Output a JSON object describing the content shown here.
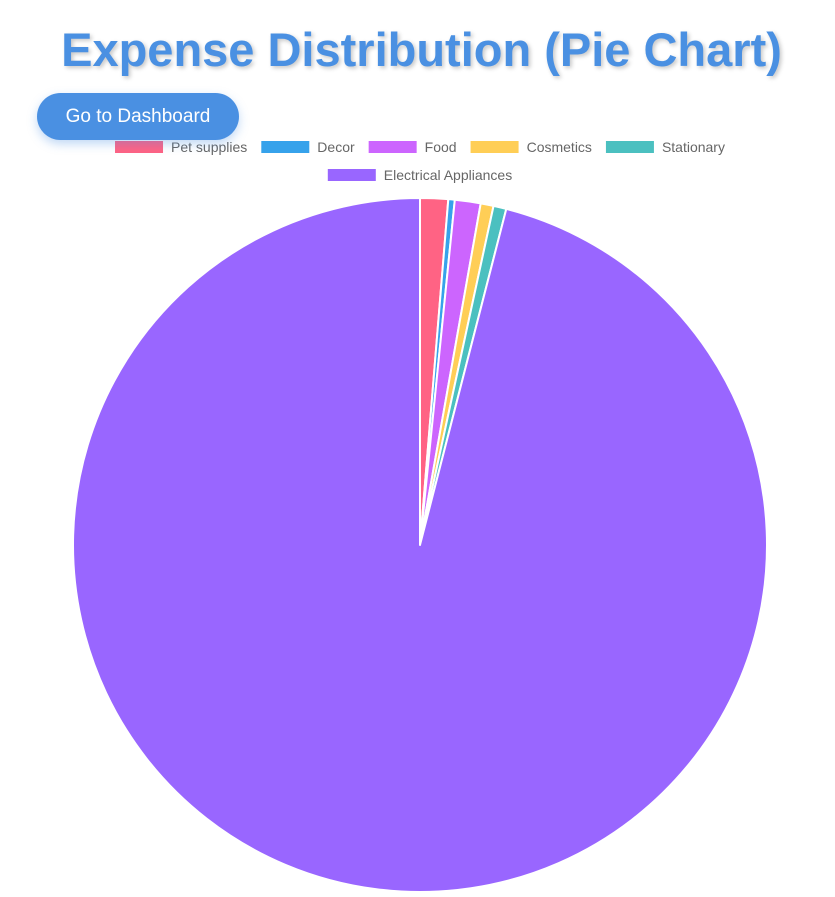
{
  "page": {
    "title": "Expense Distribution (Pie Chart)",
    "button_label": "Go to Dashboard"
  },
  "chart_data": {
    "type": "pie",
    "categories": [
      "Pet supplies",
      "Decor",
      "Food",
      "Cosmetics",
      "Stationary",
      "Electrical Appliances"
    ],
    "values": [
      1.3,
      0.3,
      1.2,
      0.6,
      0.6,
      96.0
    ],
    "colors": [
      "#ff6384",
      "#36a2eb",
      "#cc65fe",
      "#ffce56",
      "#4bc0c0",
      "#9966ff"
    ],
    "legend_position": "top"
  }
}
